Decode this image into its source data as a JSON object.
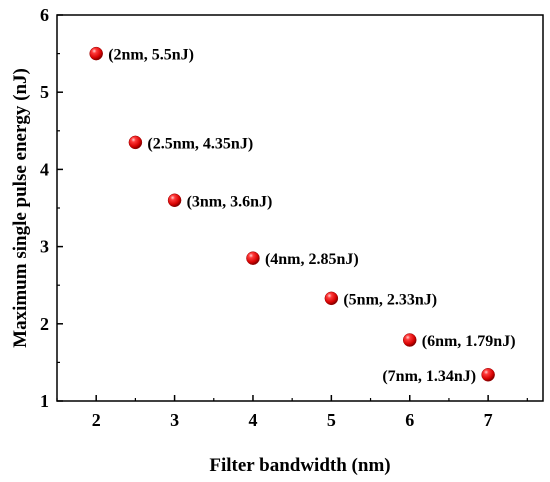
{
  "chart_data": {
    "type": "scatter",
    "title": "",
    "xlabel": "Filter bandwidth  (nm)",
    "ylabel": "Maximum single pulse energy  (nJ)",
    "xlim": [
      1.5,
      7.7
    ],
    "ylim": [
      1,
      6
    ],
    "xticks": [
      "2",
      "3",
      "4",
      "5",
      "6",
      "7"
    ],
    "yticks": [
      "1",
      "2",
      "3",
      "4",
      "5",
      "6"
    ],
    "grid": false,
    "marker_color": "#e01010",
    "points": [
      {
        "x": 2,
        "y": 5.5,
        "label": "(2nm, 5.5nJ)"
      },
      {
        "x": 2.5,
        "y": 4.35,
        "label": "(2.5nm, 4.35nJ)"
      },
      {
        "x": 3,
        "y": 3.6,
        "label": "(3nm, 3.6nJ)"
      },
      {
        "x": 4,
        "y": 2.85,
        "label": "(4nm, 2.85nJ)"
      },
      {
        "x": 5,
        "y": 2.33,
        "label": "(5nm, 2.33nJ)"
      },
      {
        "x": 6,
        "y": 1.79,
        "label": "(6nm, 1.79nJ)"
      },
      {
        "x": 7,
        "y": 1.34,
        "label": "(7nm, 1.34nJ)"
      }
    ]
  }
}
